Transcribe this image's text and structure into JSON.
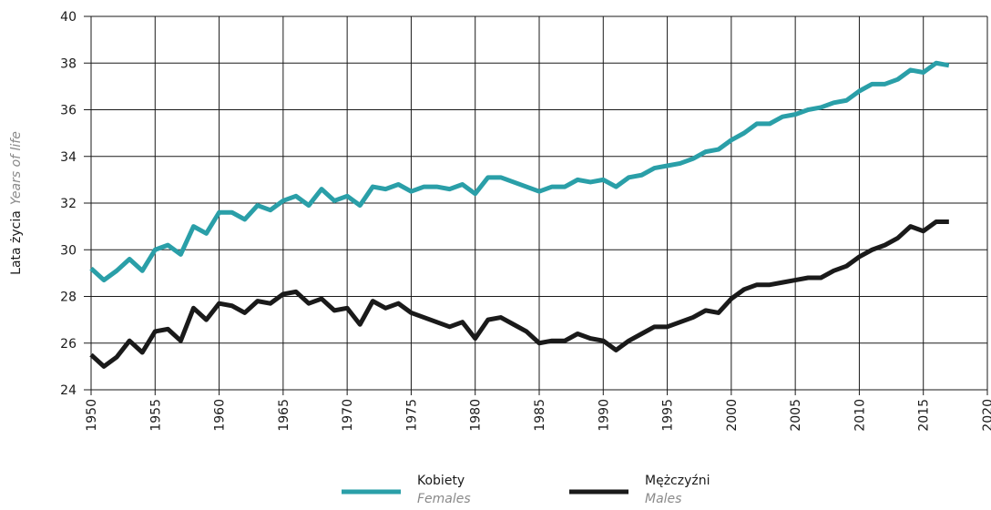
{
  "chart_data": {
    "type": "line",
    "ylabel": "Lata życia",
    "ylabel_en": "Years of life",
    "x": [
      1950,
      1951,
      1952,
      1953,
      1954,
      1955,
      1956,
      1957,
      1958,
      1959,
      1960,
      1961,
      1962,
      1963,
      1964,
      1965,
      1966,
      1967,
      1968,
      1969,
      1970,
      1971,
      1972,
      1973,
      1974,
      1975,
      1976,
      1977,
      1978,
      1979,
      1980,
      1981,
      1982,
      1983,
      1984,
      1985,
      1986,
      1987,
      1988,
      1989,
      1990,
      1991,
      1992,
      1993,
      1994,
      1995,
      1996,
      1997,
      1998,
      1999,
      2000,
      2001,
      2002,
      2003,
      2004,
      2005,
      2006,
      2007,
      2008,
      2009,
      2010,
      2011,
      2012,
      2013,
      2014,
      2015,
      2016,
      2017
    ],
    "series": [
      {
        "name": "Kobiety",
        "name_en": "Females",
        "color": "#2a9fa8",
        "values": [
          29.2,
          28.7,
          29.1,
          29.6,
          29.1,
          30.0,
          30.2,
          29.8,
          31.0,
          30.7,
          31.6,
          31.6,
          31.3,
          31.9,
          31.7,
          32.1,
          32.3,
          31.9,
          32.6,
          32.1,
          32.3,
          31.9,
          32.7,
          32.6,
          32.8,
          32.5,
          32.7,
          32.7,
          32.6,
          32.8,
          32.4,
          33.1,
          33.1,
          32.9,
          32.7,
          32.5,
          32.7,
          32.7,
          33.0,
          32.9,
          33.0,
          32.7,
          33.1,
          33.2,
          33.5,
          33.6,
          33.7,
          33.9,
          34.2,
          34.3,
          34.7,
          35.0,
          35.4,
          35.4,
          35.7,
          35.8,
          36.0,
          36.1,
          36.3,
          36.4,
          36.8,
          37.1,
          37.1,
          37.3,
          37.7,
          37.6,
          38.0,
          37.9
        ]
      },
      {
        "name": "Mężczyźni",
        "name_en": "Males",
        "color": "#1a1a1a",
        "values": [
          25.5,
          25.0,
          25.4,
          26.1,
          25.6,
          26.5,
          26.6,
          26.1,
          27.5,
          27.0,
          27.7,
          27.6,
          27.3,
          27.8,
          27.7,
          28.1,
          28.2,
          27.7,
          27.9,
          27.4,
          27.5,
          26.8,
          27.8,
          27.5,
          27.7,
          27.3,
          27.1,
          26.9,
          26.7,
          26.9,
          26.2,
          27.0,
          27.1,
          26.8,
          26.5,
          26.0,
          26.1,
          26.1,
          26.4,
          26.2,
          26.1,
          25.7,
          26.1,
          26.4,
          26.7,
          26.7,
          26.9,
          27.1,
          27.4,
          27.3,
          27.9,
          28.3,
          28.5,
          28.5,
          28.6,
          28.7,
          28.8,
          28.8,
          29.1,
          29.3,
          29.7,
          30.0,
          30.2,
          30.5,
          31.0,
          30.8,
          31.2,
          31.2
        ]
      }
    ],
    "xlim": [
      1950,
      2020
    ],
    "xticks": [
      1950,
      1955,
      1960,
      1965,
      1970,
      1975,
      1980,
      1985,
      1990,
      1995,
      2000,
      2005,
      2010,
      2015,
      2020
    ],
    "ylim": [
      24,
      40
    ],
    "yticks": [
      24,
      26,
      28,
      30,
      32,
      34,
      36,
      38,
      40
    ],
    "grid": true,
    "legend": "bottom"
  }
}
